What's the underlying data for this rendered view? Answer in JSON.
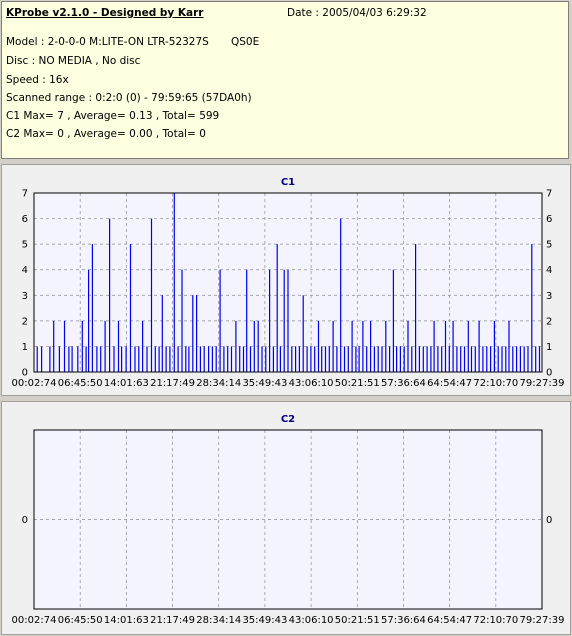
{
  "header": {
    "title": "KProbe v2.1.0 - Designed by Karr",
    "date": "Date : 2005/04/03 6:29:32",
    "model": "Model : 2-0-0-0 M:LITE-ON LTR-52327S",
    "drive_code": "QS0E",
    "disc": "Disc : NO MEDIA , No disc",
    "speed": "Speed : 16x",
    "range": "Scanned range : 0:2:0 (0) - 79:59:65 (57DA0h)",
    "c1_stats": "C1 Max= 7 , Average= 0.13 , Total= 599",
    "c2_stats": "C2 Max= 0 , Average= 0.00 , Total= 0"
  },
  "colors": {
    "bar": "#0000ee",
    "plot_bg": "#f4f4ff",
    "grid": "#8c8c8c",
    "title": "#000080"
  },
  "chart_data": [
    {
      "type": "bar",
      "title": "C1",
      "ylim": [
        0,
        7
      ],
      "y_ticks": [
        "0",
        "1",
        "2",
        "3",
        "4",
        "5",
        "6",
        "7"
      ],
      "x_ticks": [
        "00:02:74",
        "06:45:50",
        "14:01:63",
        "21:17:49",
        "28:34:14",
        "35:49:43",
        "43:06:10",
        "50:21:51",
        "57:36:64",
        "64:54:47",
        "72:10:70",
        "79:27:39"
      ],
      "grid": true,
      "peaks": [
        {
          "t": 0.5,
          "v": 1
        },
        {
          "t": 1.2,
          "v": 1
        },
        {
          "t": 2.5,
          "v": 1
        },
        {
          "t": 3.1,
          "v": 2
        },
        {
          "t": 4.0,
          "v": 1
        },
        {
          "t": 4.8,
          "v": 2
        },
        {
          "t": 5.5,
          "v": 1
        },
        {
          "t": 6.0,
          "v": 1
        },
        {
          "t": 6.9,
          "v": 1
        },
        {
          "t": 7.6,
          "v": 2
        },
        {
          "t": 8.2,
          "v": 1
        },
        {
          "t": 8.6,
          "v": 4
        },
        {
          "t": 9.2,
          "v": 5
        },
        {
          "t": 9.9,
          "v": 1
        },
        {
          "t": 10.5,
          "v": 1
        },
        {
          "t": 11.2,
          "v": 2
        },
        {
          "t": 11.9,
          "v": 6
        },
        {
          "t": 12.6,
          "v": 1
        },
        {
          "t": 13.3,
          "v": 2
        },
        {
          "t": 13.8,
          "v": 1
        },
        {
          "t": 14.5,
          "v": 1
        },
        {
          "t": 15.2,
          "v": 5
        },
        {
          "t": 15.9,
          "v": 1
        },
        {
          "t": 16.5,
          "v": 1
        },
        {
          "t": 17.1,
          "v": 2
        },
        {
          "t": 17.8,
          "v": 1
        },
        {
          "t": 18.5,
          "v": 6
        },
        {
          "t": 19.1,
          "v": 1
        },
        {
          "t": 19.7,
          "v": 1
        },
        {
          "t": 20.2,
          "v": 3
        },
        {
          "t": 20.8,
          "v": 1
        },
        {
          "t": 21.4,
          "v": 1
        },
        {
          "t": 22.1,
          "v": 7
        },
        {
          "t": 22.7,
          "v": 1
        },
        {
          "t": 23.3,
          "v": 4
        },
        {
          "t": 23.9,
          "v": 1
        },
        {
          "t": 24.4,
          "v": 1
        },
        {
          "t": 25.0,
          "v": 3
        },
        {
          "t": 25.6,
          "v": 3
        },
        {
          "t": 26.2,
          "v": 1
        },
        {
          "t": 26.8,
          "v": 1
        },
        {
          "t": 27.5,
          "v": 1
        },
        {
          "t": 28.1,
          "v": 1
        },
        {
          "t": 28.7,
          "v": 1
        },
        {
          "t": 29.3,
          "v": 4
        },
        {
          "t": 29.9,
          "v": 1
        },
        {
          "t": 30.5,
          "v": 1
        },
        {
          "t": 31.1,
          "v": 1
        },
        {
          "t": 31.8,
          "v": 2
        },
        {
          "t": 32.4,
          "v": 1
        },
        {
          "t": 33.0,
          "v": 1
        },
        {
          "t": 33.5,
          "v": 4
        },
        {
          "t": 34.1,
          "v": 1
        },
        {
          "t": 34.7,
          "v": 2
        },
        {
          "t": 35.3,
          "v": 2
        },
        {
          "t": 35.9,
          "v": 1
        },
        {
          "t": 36.5,
          "v": 1
        },
        {
          "t": 37.1,
          "v": 4
        },
        {
          "t": 37.7,
          "v": 1
        },
        {
          "t": 38.3,
          "v": 5
        },
        {
          "t": 38.8,
          "v": 1
        },
        {
          "t": 39.4,
          "v": 4
        },
        {
          "t": 40.0,
          "v": 4
        },
        {
          "t": 40.6,
          "v": 1
        },
        {
          "t": 41.2,
          "v": 1
        },
        {
          "t": 41.8,
          "v": 1
        },
        {
          "t": 42.4,
          "v": 3
        },
        {
          "t": 43.0,
          "v": 1
        },
        {
          "t": 43.6,
          "v": 1
        },
        {
          "t": 44.2,
          "v": 1
        },
        {
          "t": 44.8,
          "v": 2
        },
        {
          "t": 45.3,
          "v": 1
        },
        {
          "t": 45.9,
          "v": 1
        },
        {
          "t": 46.5,
          "v": 1
        },
        {
          "t": 47.1,
          "v": 2
        },
        {
          "t": 47.7,
          "v": 1
        },
        {
          "t": 48.3,
          "v": 6
        },
        {
          "t": 48.9,
          "v": 1
        },
        {
          "t": 49.5,
          "v": 1
        },
        {
          "t": 50.1,
          "v": 2
        },
        {
          "t": 50.7,
          "v": 1
        },
        {
          "t": 51.2,
          "v": 1
        },
        {
          "t": 51.8,
          "v": 2
        },
        {
          "t": 52.4,
          "v": 1
        },
        {
          "t": 53.0,
          "v": 2
        },
        {
          "t": 53.6,
          "v": 1
        },
        {
          "t": 54.2,
          "v": 1
        },
        {
          "t": 54.8,
          "v": 1
        },
        {
          "t": 55.4,
          "v": 2
        },
        {
          "t": 56.0,
          "v": 1
        },
        {
          "t": 56.6,
          "v": 4
        },
        {
          "t": 57.1,
          "v": 1
        },
        {
          "t": 57.7,
          "v": 1
        },
        {
          "t": 58.3,
          "v": 1
        },
        {
          "t": 58.9,
          "v": 2
        },
        {
          "t": 59.5,
          "v": 1
        },
        {
          "t": 60.1,
          "v": 5
        },
        {
          "t": 60.7,
          "v": 1
        },
        {
          "t": 61.3,
          "v": 1
        },
        {
          "t": 61.9,
          "v": 1
        },
        {
          "t": 62.5,
          "v": 1
        },
        {
          "t": 63.0,
          "v": 2
        },
        {
          "t": 63.6,
          "v": 1
        },
        {
          "t": 64.2,
          "v": 1
        },
        {
          "t": 64.8,
          "v": 2
        },
        {
          "t": 65.4,
          "v": 1
        },
        {
          "t": 66.0,
          "v": 2
        },
        {
          "t": 66.6,
          "v": 1
        },
        {
          "t": 67.2,
          "v": 1
        },
        {
          "t": 67.8,
          "v": 1
        },
        {
          "t": 68.4,
          "v": 2
        },
        {
          "t": 68.9,
          "v": 1
        },
        {
          "t": 69.5,
          "v": 1
        },
        {
          "t": 70.1,
          "v": 2
        },
        {
          "t": 70.7,
          "v": 1
        },
        {
          "t": 71.3,
          "v": 1
        },
        {
          "t": 71.9,
          "v": 1
        },
        {
          "t": 72.5,
          "v": 2
        },
        {
          "t": 73.1,
          "v": 1
        },
        {
          "t": 73.7,
          "v": 1
        },
        {
          "t": 74.3,
          "v": 1
        },
        {
          "t": 74.8,
          "v": 2
        },
        {
          "t": 75.4,
          "v": 1
        },
        {
          "t": 76.0,
          "v": 1
        },
        {
          "t": 76.6,
          "v": 1
        },
        {
          "t": 77.2,
          "v": 1
        },
        {
          "t": 77.8,
          "v": 1
        },
        {
          "t": 78.4,
          "v": 5
        },
        {
          "t": 79.0,
          "v": 1
        },
        {
          "t": 79.6,
          "v": 1
        }
      ]
    },
    {
      "type": "bar",
      "title": "C2",
      "ylim": [
        -1,
        1
      ],
      "y_ticks": [
        "0"
      ],
      "x_ticks": [
        "00:02:74",
        "06:45:50",
        "14:01:63",
        "21:17:49",
        "28:34:14",
        "35:49:43",
        "43:06:10",
        "50:21:51",
        "57:36:64",
        "64:54:47",
        "72:10:70",
        "79:27:39"
      ],
      "grid": true,
      "peaks": []
    }
  ]
}
